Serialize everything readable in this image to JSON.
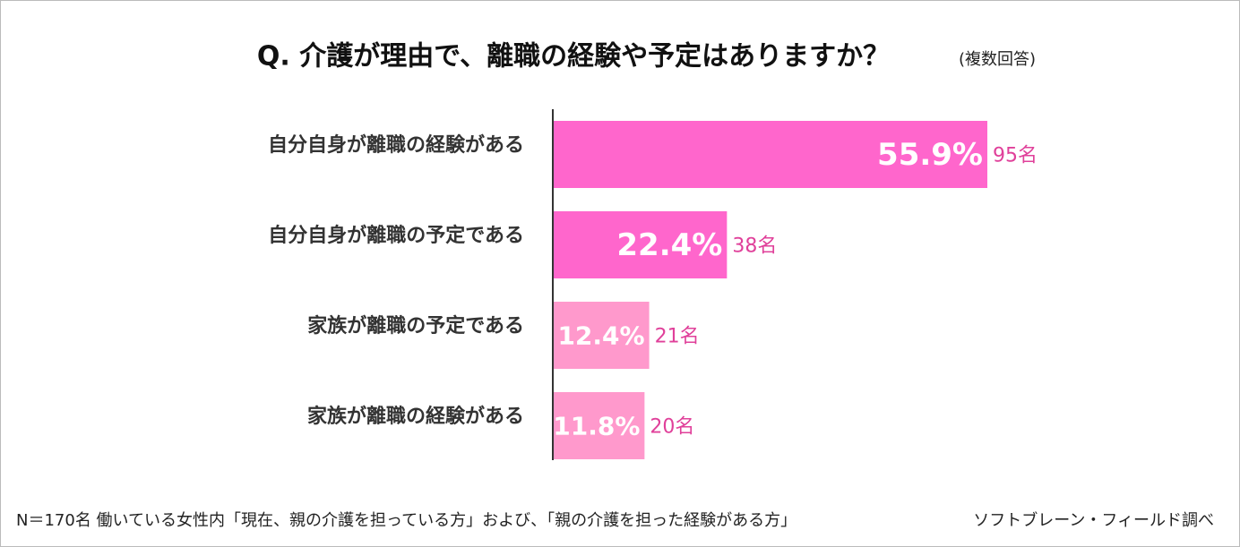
{
  "chart_data": {
    "type": "hbar",
    "title": "Q.  介護が理由で、離職の経験や予定はありますか？",
    "subtitle": "(複数回答)",
    "categories": [
      "自分自身が離職の経験がある",
      "自分自身が離職の予定である",
      "家族が離職の予定である",
      "家族が離職の経験がある"
    ],
    "values": [
      55.9,
      22.4,
      12.4,
      11.8
    ],
    "value_labels": [
      "55.9%",
      "22.4%",
      "12.4%",
      "11.8%"
    ],
    "counts": [
      95,
      38,
      21,
      20
    ],
    "count_labels": [
      "95名",
      "38名",
      "21名",
      "20名"
    ],
    "colors": [
      "#ff66cc",
      "#ff66cc",
      "#ff99cc",
      "#ff99cc"
    ],
    "note": "N＝170名 働いている女性内「現在、親の介護を担っている方」および、「親の介護を担った経験がある方」",
    "source": "ソフトブレーン・フィールド調べ"
  }
}
